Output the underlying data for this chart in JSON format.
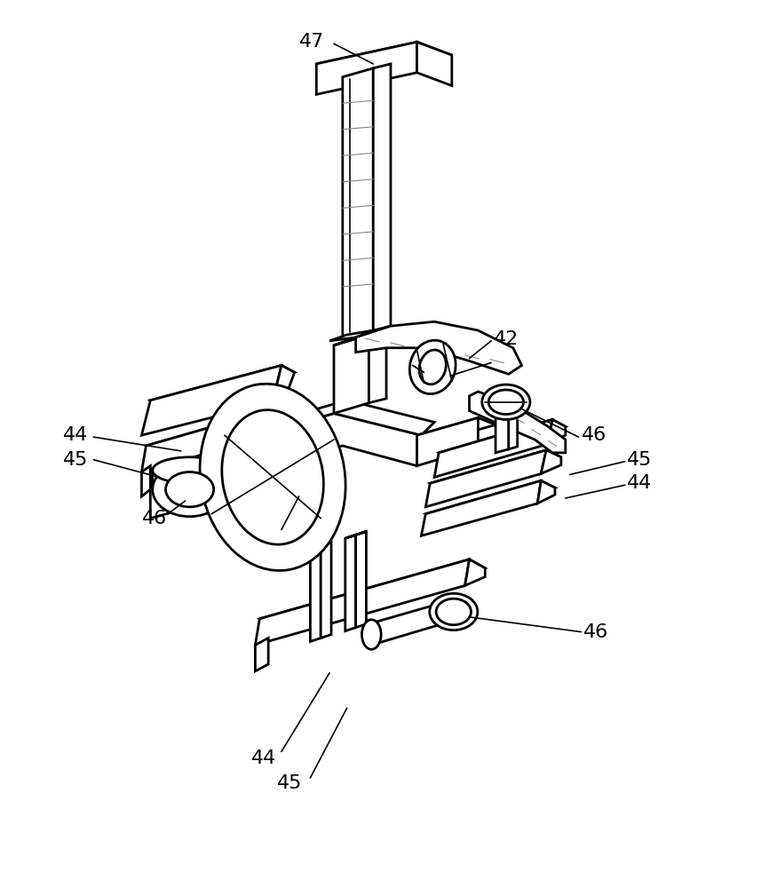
{
  "background_color": "#ffffff",
  "line_color": "#000000",
  "line_width": 2.0,
  "thin_lw": 1.2,
  "fig_width": 8.75,
  "fig_height": 10.0,
  "annotation_fontsize": 16
}
